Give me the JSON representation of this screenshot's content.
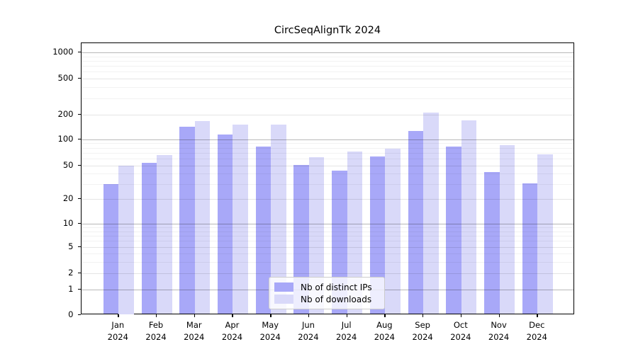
{
  "title": "CircSeqAlignTk 2024",
  "chart_data": {
    "type": "bar",
    "title": "CircSeqAlignTk 2024",
    "categories": [
      "Jan 2024",
      "Feb 2024",
      "Mar 2024",
      "Apr 2024",
      "May 2024",
      "Jun 2024",
      "Jul 2024",
      "Aug 2024",
      "Sep 2024",
      "Oct 2024",
      "Nov 2024",
      "Dec 2024"
    ],
    "series": [
      {
        "name": "Nb of distinct IPs",
        "color": "#a8a8f8",
        "values": [
          30,
          54,
          141,
          115,
          82,
          51,
          44,
          63,
          127,
          82,
          42,
          31
        ]
      },
      {
        "name": "Nb of downloads",
        "color": "#d9d9f9",
        "values": [
          50,
          66,
          166,
          152,
          151,
          62,
          72,
          78,
          212,
          169,
          86,
          67
        ]
      }
    ],
    "yscale": "symlog",
    "yticks": [
      0,
      1,
      2,
      5,
      10,
      20,
      50,
      100,
      200,
      500,
      1000
    ],
    "ylim": [
      0,
      1200
    ],
    "xlabel": "",
    "ylabel": "",
    "grid": true,
    "legend_position": "lower center"
  },
  "legend": {
    "items": [
      {
        "label": "Nb of distinct IPs"
      },
      {
        "label": "Nb of downloads"
      }
    ]
  }
}
